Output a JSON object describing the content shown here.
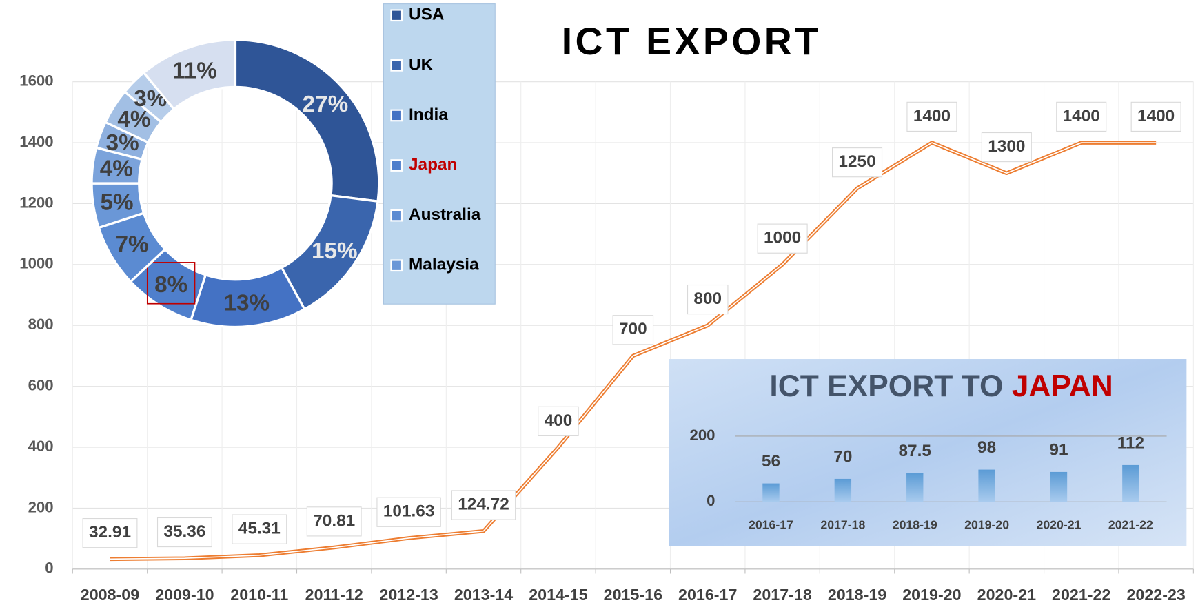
{
  "chart_data": [
    {
      "type": "line",
      "title": "ICT EXPORT",
      "categories": [
        "2008-09",
        "2009-10",
        "2010-11",
        "2011-12",
        "2012-13",
        "2013-14",
        "2014-15",
        "2015-16",
        "2016-17",
        "2017-18",
        "2018-19",
        "2019-20",
        "2020-21",
        "2021-22",
        "2022-23"
      ],
      "values": [
        32.91,
        35.36,
        45.31,
        70.81,
        101.63,
        124.72,
        400,
        700,
        800,
        1000,
        1250,
        1400,
        1300,
        1400,
        1400
      ],
      "color": "#ed7d31",
      "ylim": [
        0,
        1600
      ],
      "yticks": [
        0,
        200,
        400,
        600,
        800,
        1000,
        1200,
        1400,
        1600
      ],
      "grid": true
    },
    {
      "type": "doughnut",
      "categories": [
        "USA",
        "UK",
        "India",
        "Japan",
        "Australia",
        "Malaysia",
        null,
        null,
        null,
        null,
        null
      ],
      "values": [
        27,
        15,
        13,
        8,
        7,
        5,
        4,
        3,
        4,
        3,
        11
      ],
      "value_labels": [
        "27%",
        "15%",
        "13%",
        "8%",
        "7%",
        "5%",
        "4%",
        "3%",
        "4%",
        "3%",
        "11%"
      ],
      "colors": [
        "#2f5597",
        "#3a65ad",
        "#4472c4",
        "#4f7fcc",
        "#5b8bd2",
        "#6a97d7",
        "#7ba3db",
        "#8eb0df",
        "#a2bfe4",
        "#b6cdea",
        "#d6dff0"
      ],
      "highlight_index": 3,
      "highlight_color": "#c00000"
    },
    {
      "type": "bar",
      "title": "ICT EXPORT TO ",
      "title_emphasis": "JAPAN",
      "categories": [
        "2016-17",
        "2017-18",
        "2018-19",
        "2019-20",
        "2020-21",
        "2021-22"
      ],
      "values": [
        56,
        70,
        87.5,
        98,
        91,
        112
      ],
      "color": "#5b9bd5",
      "ylim": [
        0,
        200
      ],
      "yticks": [
        0,
        200
      ],
      "grid": true
    }
  ]
}
